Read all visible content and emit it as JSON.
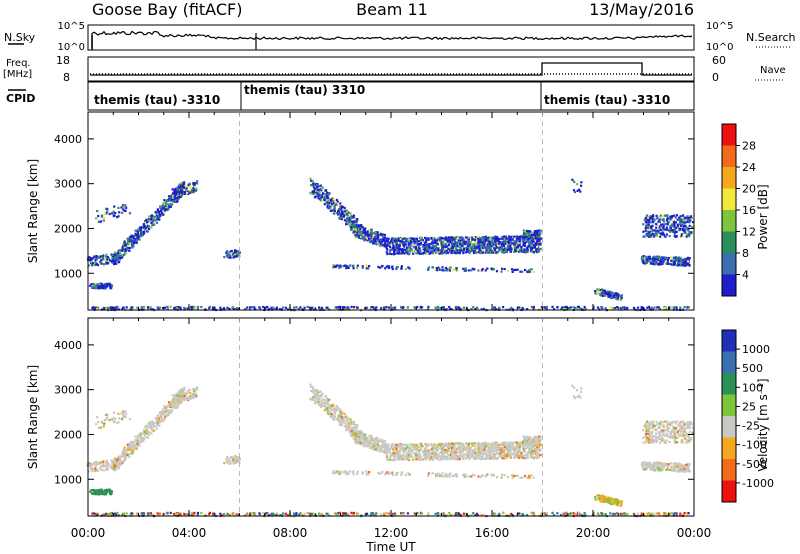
{
  "header": {
    "station": "Goose Bay (fitACF)",
    "beam": "Beam 11",
    "date": "13/May/2016"
  },
  "strips": {
    "nsky_label": "N.Sky",
    "nsearch_label": "N.Search",
    "left_ticks": [
      "10^5",
      "10^0"
    ],
    "right_ticks": [
      "10^5",
      "10^0"
    ],
    "freq_label": "Freq.",
    "freq_unit": "[MHz]",
    "freq_ticks": [
      "18",
      "8"
    ],
    "nave_label": "Nave",
    "nave_ticks": [
      "60",
      "0"
    ],
    "cpid_label": "CPID",
    "cpid_segments": [
      {
        "label": "themis (tau) -3310",
        "start_hour": 0
      },
      {
        "label": "themis (tau) 3310",
        "start_hour": 6
      },
      {
        "label": "themis (tau) -3310",
        "start_hour": 18
      }
    ]
  },
  "chart_data": [
    {
      "type": "heatmap",
      "name": "power-panel",
      "ylabel": "Slant Range [km]",
      "x_range_hours": [
        0,
        24
      ],
      "ylim": [
        180,
        4600
      ],
      "yticks": [
        1000,
        2000,
        3000,
        4000
      ],
      "colorbar": {
        "label": "Power [dB]",
        "ticks": [
          "28",
          "24",
          "20",
          "16",
          "12",
          "8",
          "4"
        ],
        "colors": [
          "#ee1111",
          "#f26a1a",
          "#f6a81e",
          "#f1e93a",
          "#7dc63c",
          "#2a8f5a",
          "#3b6fb0",
          "#1e1ecf"
        ]
      }
    },
    {
      "type": "heatmap",
      "name": "velocity-panel",
      "ylabel": "Slant Range [km]",
      "x_range_hours": [
        0,
        24
      ],
      "ylim": [
        180,
        4600
      ],
      "yticks": [
        1000,
        2000,
        3000,
        4000
      ],
      "xticks": [
        "00:00",
        "04:00",
        "08:00",
        "12:00",
        "16:00",
        "20:00",
        "00:00"
      ],
      "xlabel": "Time UT",
      "colorbar": {
        "label": "Velocity [m s⁻¹]",
        "ticks": [
          "1000",
          "500",
          "100",
          "25",
          "-25",
          "-100",
          "-500",
          "-1000"
        ],
        "colors": [
          "#1f2fb8",
          "#3a6fb0",
          "#2f8f58",
          "#7dc63c",
          "#c8c8c4",
          "#f6a81e",
          "#f26a1a",
          "#ee1111"
        ]
      }
    }
  ]
}
